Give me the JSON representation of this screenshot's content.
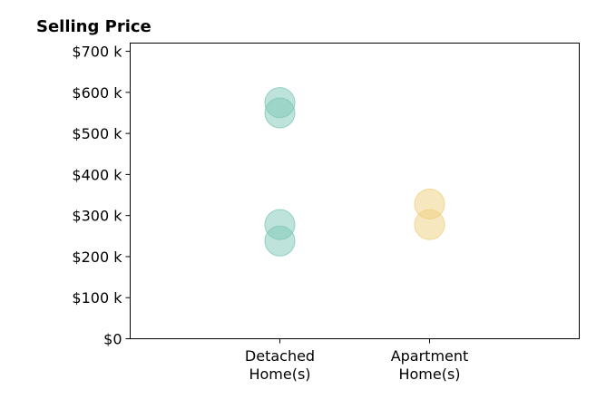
{
  "chart_data": {
    "type": "scatter",
    "title": "Selling Price",
    "xlabel": "",
    "ylabel": "",
    "categories": [
      [
        "Detached",
        "Home(s)"
      ],
      [
        "Apartment",
        "Home(s)"
      ]
    ],
    "ylim": [
      0,
      720000
    ],
    "yticks": [
      0,
      100000,
      200000,
      300000,
      400000,
      500000,
      600000,
      700000
    ],
    "ytick_labels": [
      "$0",
      "$100 k",
      "$200 k",
      "$300 k",
      "$400 k",
      "$500 k",
      "$600 k",
      "$700 k"
    ],
    "grid": false,
    "legend": "none",
    "series": [
      {
        "category_index": 0,
        "color": "#7ec8b8",
        "values": [
          575000,
          550000,
          278000,
          238000
        ]
      },
      {
        "category_index": 1,
        "color": "#f0cf80",
        "values": [
          328000,
          278000
        ]
      }
    ]
  }
}
